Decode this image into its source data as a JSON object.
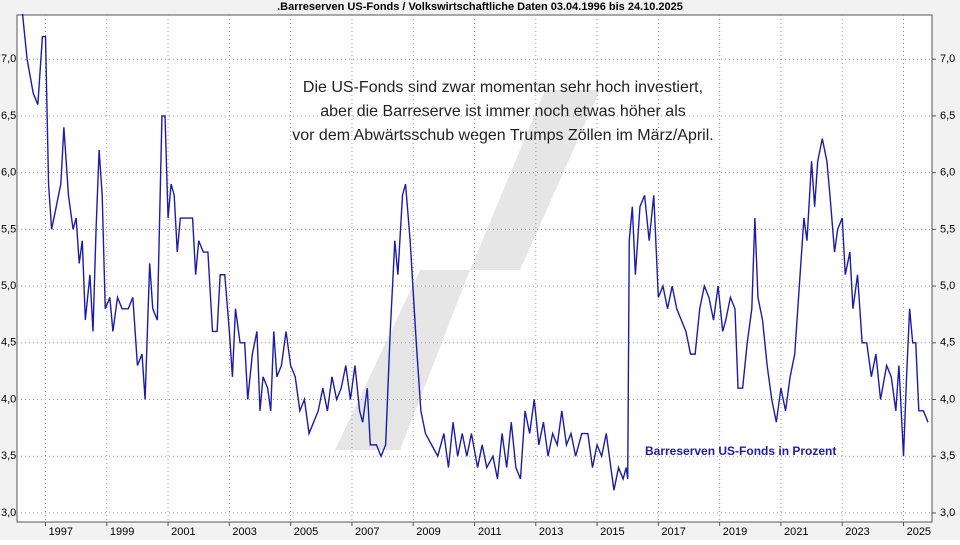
{
  "chart_data": {
    "type": "line",
    "title": ".Barreserven US-Fonds / Volkswirtschaftliche Daten 03.04.1996 bis 24.10.2025",
    "annotation": [
      "Die US-Fonds sind zwar momentan sehr hoch investiert,",
      "aber die Barreserve ist immer noch etwas höher als",
      "vor dem Abwärtsschub wegen Trumps Zöllen im März/April."
    ],
    "xlim": [
      1996.07,
      2025.93
    ],
    "ylim": [
      2.92,
      7.39
    ],
    "xticks": [
      1997,
      1999,
      2001,
      2003,
      2005,
      2007,
      2009,
      2011,
      2013,
      2015,
      2017,
      2019,
      2021,
      2023,
      2025
    ],
    "yticks": [
      {
        "value": 3,
        "label": "3,0"
      },
      {
        "value": 3.5,
        "label": "3,5"
      },
      {
        "value": 4,
        "label": "4,0"
      },
      {
        "value": 4.5,
        "label": "4,5"
      },
      {
        "value": 5,
        "label": "5,0"
      },
      {
        "value": 5.5,
        "label": "5,5"
      },
      {
        "value": 6,
        "label": "6,0"
      },
      {
        "value": 6.5,
        "label": "6,5"
      },
      {
        "value": 7,
        "label": "7,0"
      }
    ],
    "grid": true,
    "x": [
      1996.25,
      1996.4,
      1996.6,
      1996.75,
      1996.9,
      1997.0,
      1997.1,
      1997.2,
      1997.35,
      1997.5,
      1997.6,
      1997.75,
      1997.9,
      1998.0,
      1998.1,
      1998.2,
      1998.3,
      1998.45,
      1998.55,
      1998.65,
      1998.75,
      1998.85,
      1998.95,
      1999.1,
      1999.2,
      1999.35,
      1999.5,
      1999.7,
      1999.85,
      2000.0,
      2000.15,
      2000.25,
      2000.4,
      2000.5,
      2000.65,
      2000.8,
      2000.9,
      2001.0,
      2001.1,
      2001.2,
      2001.3,
      2001.4,
      2001.6,
      2001.8,
      2001.9,
      2002.0,
      2002.15,
      2002.3,
      2002.45,
      2002.6,
      2002.7,
      2002.85,
      2003.0,
      2003.1,
      2003.2,
      2003.35,
      2003.5,
      2003.6,
      2003.75,
      2003.9,
      2004.0,
      2004.1,
      2004.25,
      2004.35,
      2004.45,
      2004.55,
      2004.7,
      2004.85,
      2005.0,
      2005.15,
      2005.3,
      2005.45,
      2005.6,
      2005.75,
      2005.9,
      2006.05,
      2006.2,
      2006.35,
      2006.5,
      2006.65,
      2006.8,
      2006.95,
      2007.1,
      2007.25,
      2007.35,
      2007.5,
      2007.6,
      2007.8,
      2007.95,
      2008.1,
      2008.25,
      2008.4,
      2008.5,
      2008.65,
      2008.75,
      2008.9,
      2009.1,
      2009.25,
      2009.4,
      2009.6,
      2009.8,
      2010.0,
      2010.15,
      2010.3,
      2010.45,
      2010.6,
      2010.75,
      2010.9,
      2011.1,
      2011.25,
      2011.4,
      2011.6,
      2011.75,
      2011.9,
      2012.05,
      2012.2,
      2012.35,
      2012.5,
      2012.65,
      2012.8,
      2012.95,
      2013.1,
      2013.25,
      2013.4,
      2013.55,
      2013.7,
      2013.85,
      2014.0,
      2014.15,
      2014.3,
      2014.5,
      2014.7,
      2014.85,
      2015.0,
      2015.15,
      2015.3,
      2015.45,
      2015.55,
      2015.7,
      2015.85,
      2015.95,
      2016.0,
      2016.05,
      2016.15,
      2016.25,
      2016.4,
      2016.55,
      2016.7,
      2016.85,
      2017.0,
      2017.15,
      2017.3,
      2017.45,
      2017.6,
      2017.75,
      2017.9,
      2018.05,
      2018.2,
      2018.35,
      2018.5,
      2018.65,
      2018.8,
      2018.95,
      2019.1,
      2019.2,
      2019.35,
      2019.5,
      2019.6,
      2019.75,
      2019.9,
      2020.05,
      2020.15,
      2020.25,
      2020.4,
      2020.55,
      2020.7,
      2020.85,
      2021.0,
      2021.15,
      2021.3,
      2021.45,
      2021.6,
      2021.75,
      2021.85,
      2022.0,
      2022.1,
      2022.2,
      2022.35,
      2022.5,
      2022.6,
      2022.75,
      2022.85,
      2023.0,
      2023.1,
      2023.25,
      2023.35,
      2023.5,
      2023.65,
      2023.8,
      2023.95,
      2024.1,
      2024.25,
      2024.45,
      2024.6,
      2024.75,
      2024.85,
      2025.0,
      2025.1,
      2025.2,
      2025.3,
      2025.4,
      2025.5,
      2025.65,
      2025.8
    ],
    "series": [
      {
        "name": "Barreserven US-Fonds in Prozent",
        "color": "#1c1ca8",
        "values": [
          7.4,
          7.0,
          6.7,
          6.6,
          7.2,
          7.2,
          5.9,
          5.5,
          5.7,
          5.9,
          6.4,
          5.8,
          5.5,
          5.6,
          5.2,
          5.4,
          4.7,
          5.1,
          4.6,
          5.5,
          6.2,
          5.8,
          4.8,
          4.9,
          4.6,
          4.9,
          4.8,
          4.8,
          4.9,
          4.3,
          4.4,
          4.0,
          5.2,
          4.8,
          4.7,
          6.5,
          6.5,
          5.6,
          5.9,
          5.8,
          5.3,
          5.6,
          5.6,
          5.6,
          5.1,
          5.4,
          5.3,
          5.3,
          4.6,
          4.6,
          5.1,
          5.1,
          4.6,
          4.2,
          4.8,
          4.5,
          4.5,
          4.0,
          4.4,
          4.6,
          3.9,
          4.2,
          4.1,
          3.9,
          4.6,
          4.2,
          4.3,
          4.6,
          4.3,
          4.2,
          3.9,
          4.0,
          3.7,
          3.8,
          3.9,
          4.1,
          3.9,
          4.2,
          4.0,
          4.1,
          4.3,
          4.0,
          4.3,
          3.9,
          3.8,
          4.1,
          3.6,
          3.6,
          3.5,
          3.6,
          4.6,
          5.4,
          5.1,
          5.8,
          5.9,
          5.4,
          4.5,
          3.9,
          3.7,
          3.6,
          3.5,
          3.7,
          3.4,
          3.8,
          3.5,
          3.7,
          3.5,
          3.7,
          3.4,
          3.6,
          3.4,
          3.5,
          3.3,
          3.7,
          3.4,
          3.8,
          3.4,
          3.3,
          3.9,
          3.7,
          4.0,
          3.6,
          3.8,
          3.5,
          3.7,
          3.6,
          3.9,
          3.6,
          3.7,
          3.5,
          3.7,
          3.7,
          3.4,
          3.6,
          3.5,
          3.7,
          3.4,
          3.2,
          3.4,
          3.3,
          3.4,
          3.3,
          5.4,
          5.7,
          5.1,
          5.7,
          5.8,
          5.4,
          5.8,
          4.9,
          5.0,
          4.8,
          5.0,
          4.8,
          4.7,
          4.6,
          4.4,
          4.4,
          4.8,
          5.0,
          4.9,
          4.7,
          5.0,
          4.6,
          4.7,
          4.9,
          4.8,
          4.1,
          4.1,
          4.5,
          4.8,
          5.6,
          4.9,
          4.7,
          4.3,
          4.0,
          3.8,
          4.1,
          3.9,
          4.2,
          4.4,
          5.0,
          5.6,
          5.4,
          6.1,
          5.7,
          6.1,
          6.3,
          6.1,
          5.8,
          5.3,
          5.5,
          5.6,
          5.1,
          5.3,
          4.8,
          5.1,
          4.5,
          4.5,
          4.2,
          4.4,
          4.0,
          4.3,
          4.2,
          3.9,
          4.3,
          3.5,
          4.2,
          4.8,
          4.5,
          4.5,
          3.9,
          3.9,
          3.8
        ]
      }
    ]
  }
}
